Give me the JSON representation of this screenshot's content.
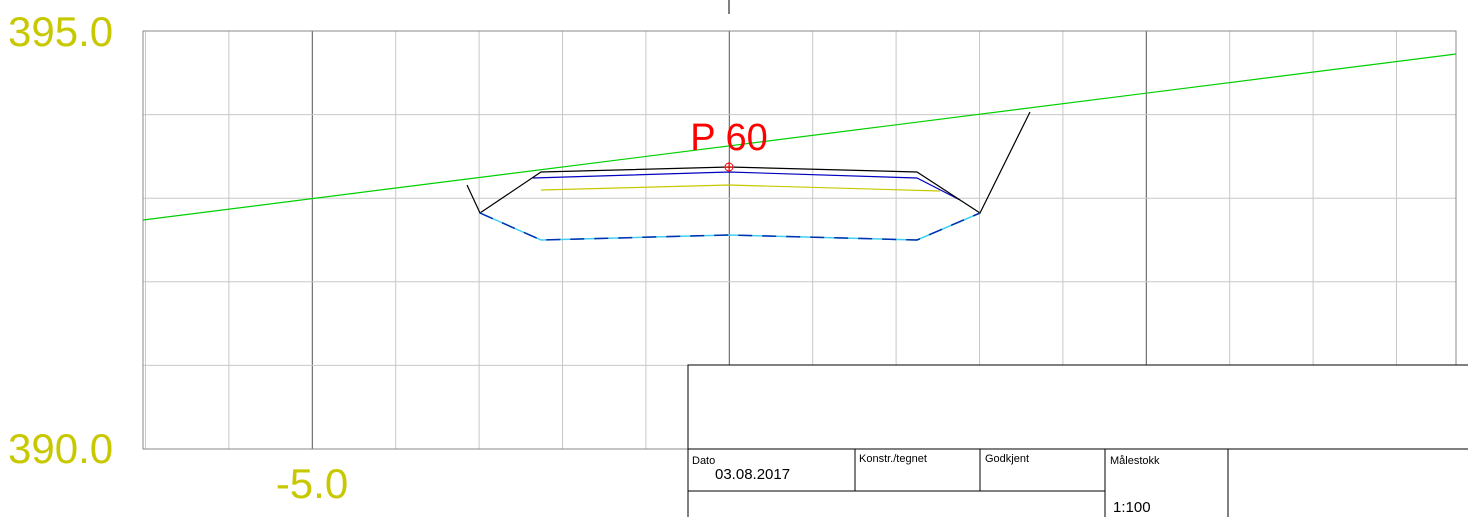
{
  "axis_labels": {
    "y_top": "395.0",
    "y_bottom": "390.0",
    "x_left": "-5.0"
  },
  "profile": {
    "label": "P 60"
  },
  "title_block": {
    "date_label": "Dato",
    "date": "03.08.2017",
    "drawn_by_label": "Konstr./tegnet",
    "approved_label": "Godkjent",
    "scale_label": "Målestokk",
    "scale": "1:100"
  }
}
